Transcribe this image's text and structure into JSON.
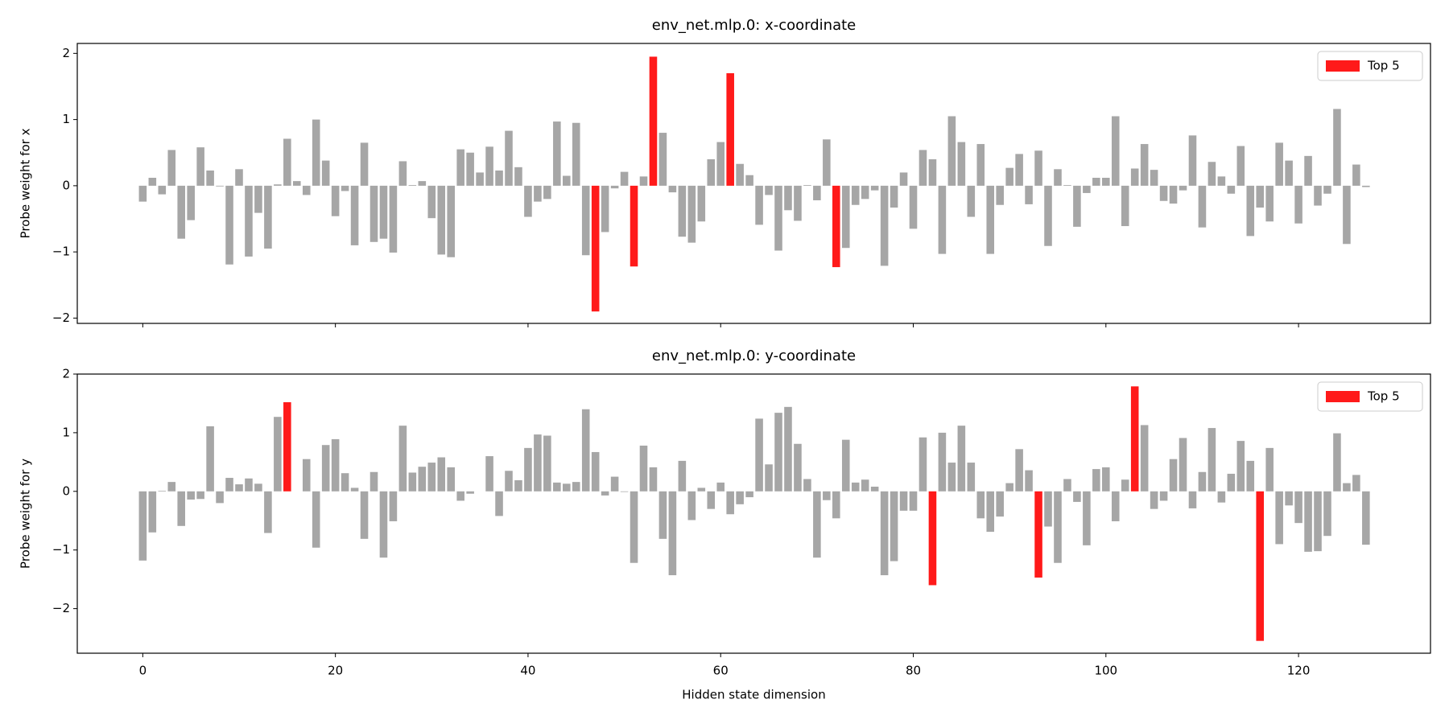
{
  "chart_data": [
    {
      "type": "bar",
      "title": "env_net.mlp.0: x-coordinate",
      "ylabel": "Probe weight for x",
      "x": [
        0,
        1,
        2,
        3,
        4,
        5,
        6,
        7,
        8,
        9,
        10,
        11,
        12,
        13,
        14,
        15,
        16,
        17,
        18,
        19,
        20,
        21,
        22,
        23,
        24,
        25,
        26,
        27,
        28,
        29,
        30,
        31,
        32,
        33,
        34,
        35,
        36,
        37,
        38,
        39,
        40,
        41,
        42,
        43,
        44,
        45,
        46,
        47,
        48,
        49,
        50,
        51,
        52,
        53,
        54,
        55,
        56,
        57,
        58,
        59,
        60,
        61,
        62,
        63,
        64,
        65,
        66,
        67,
        68,
        69,
        70,
        71,
        72,
        73,
        74,
        75,
        76,
        77,
        78,
        79,
        80,
        81,
        82,
        83,
        84,
        85,
        86,
        87,
        88,
        89,
        90,
        91,
        92,
        93,
        94,
        95,
        96,
        97,
        98,
        99,
        100,
        101,
        102,
        103,
        104,
        105,
        106,
        107,
        108,
        109,
        110,
        111,
        112,
        113,
        114,
        115,
        116,
        117,
        118,
        119,
        120,
        121,
        122,
        123,
        124,
        125,
        126,
        127
      ],
      "values": [
        -0.24,
        0.12,
        -0.13,
        0.54,
        -0.8,
        -0.52,
        0.58,
        0.23,
        -0.01,
        -1.19,
        0.25,
        -1.07,
        -0.41,
        -0.95,
        0.02,
        0.71,
        0.07,
        -0.14,
        1.0,
        0.38,
        -0.46,
        -0.08,
        -0.9,
        0.65,
        -0.85,
        -0.8,
        -1.01,
        0.37,
        0.01,
        0.07,
        -0.49,
        -1.04,
        -1.08,
        0.55,
        0.5,
        0.2,
        0.59,
        0.23,
        0.83,
        0.28,
        -0.47,
        -0.24,
        -0.2,
        0.97,
        0.15,
        0.95,
        -1.05,
        -1.9,
        -0.7,
        -0.04,
        0.21,
        -1.22,
        0.14,
        1.95,
        0.8,
        -0.1,
        -0.77,
        -0.86,
        -0.54,
        0.4,
        0.66,
        1.7,
        0.33,
        0.16,
        -0.59,
        -0.14,
        -0.98,
        -0.37,
        -0.53,
        0.01,
        -0.22,
        0.7,
        -1.23,
        -0.94,
        -0.29,
        -0.2,
        -0.07,
        -1.21,
        -0.33,
        0.2,
        -0.65,
        0.54,
        0.4,
        -1.03,
        1.05,
        0.66,
        -0.47,
        0.63,
        -1.03,
        -0.29,
        0.27,
        0.48,
        -0.28,
        0.53,
        -0.91,
        0.25,
        0.01,
        -0.62,
        -0.11,
        0.12,
        0.12,
        1.05,
        -0.61,
        0.26,
        0.63,
        0.24,
        -0.23,
        -0.27,
        -0.07,
        0.76,
        -0.63,
        0.36,
        0.14,
        -0.12,
        0.6,
        -0.76,
        -0.33,
        -0.54,
        0.65,
        0.38,
        -0.57,
        0.45,
        -0.3,
        -0.12,
        1.16,
        -0.88,
        0.32,
        -0.02
      ],
      "colors": [
        "#a6a6a6",
        "#a6a6a6",
        "#a6a6a6",
        "#a6a6a6",
        "#a6a6a6",
        "#a6a6a6",
        "#a6a6a6",
        "#a6a6a6",
        "#a6a6a6",
        "#a6a6a6",
        "#a6a6a6",
        "#a6a6a6",
        "#a6a6a6",
        "#a6a6a6",
        "#a6a6a6",
        "#a6a6a6",
        "#a6a6a6",
        "#a6a6a6",
        "#a6a6a6",
        "#a6a6a6",
        "#a6a6a6",
        "#a6a6a6",
        "#a6a6a6",
        "#a6a6a6",
        "#a6a6a6",
        "#a6a6a6",
        "#a6a6a6",
        "#a6a6a6",
        "#a6a6a6",
        "#a6a6a6",
        "#a6a6a6",
        "#a6a6a6",
        "#a6a6a6",
        "#a6a6a6",
        "#a6a6a6",
        "#a6a6a6",
        "#a6a6a6",
        "#a6a6a6",
        "#a6a6a6",
        "#a6a6a6",
        "#a6a6a6",
        "#a6a6a6",
        "#a6a6a6",
        "#a6a6a6",
        "#a6a6a6",
        "#a6a6a6",
        "#a6a6a6",
        "#ff1a1a",
        "#a6a6a6",
        "#a6a6a6",
        "#a6a6a6",
        "#ff1a1a",
        "#a6a6a6",
        "#ff1a1a",
        "#a6a6a6",
        "#a6a6a6",
        "#a6a6a6",
        "#a6a6a6",
        "#a6a6a6",
        "#a6a6a6",
        "#a6a6a6",
        "#ff1a1a",
        "#a6a6a6",
        "#a6a6a6",
        "#a6a6a6",
        "#a6a6a6",
        "#a6a6a6",
        "#a6a6a6",
        "#a6a6a6",
        "#a6a6a6",
        "#a6a6a6",
        "#a6a6a6",
        "#ff1a1a",
        "#a6a6a6",
        "#a6a6a6",
        "#a6a6a6",
        "#a6a6a6",
        "#a6a6a6",
        "#a6a6a6",
        "#a6a6a6",
        "#a6a6a6",
        "#a6a6a6",
        "#a6a6a6",
        "#a6a6a6",
        "#a6a6a6",
        "#a6a6a6",
        "#a6a6a6",
        "#a6a6a6",
        "#a6a6a6",
        "#a6a6a6",
        "#a6a6a6",
        "#a6a6a6",
        "#a6a6a6",
        "#a6a6a6",
        "#a6a6a6",
        "#a6a6a6",
        "#a6a6a6",
        "#a6a6a6",
        "#a6a6a6",
        "#a6a6a6",
        "#a6a6a6",
        "#a6a6a6",
        "#a6a6a6",
        "#a6a6a6",
        "#a6a6a6",
        "#a6a6a6",
        "#a6a6a6",
        "#a6a6a6",
        "#a6a6a6",
        "#a6a6a6",
        "#a6a6a6",
        "#a6a6a6",
        "#a6a6a6",
        "#a6a6a6",
        "#a6a6a6",
        "#a6a6a6",
        "#a6a6a6",
        "#a6a6a6",
        "#a6a6a6",
        "#a6a6a6",
        "#a6a6a6",
        "#a6a6a6",
        "#a6a6a6",
        "#a6a6a6",
        "#a6a6a6",
        "#a6a6a6",
        "#a6a6a6",
        "#a6a6a6"
      ],
      "legend": {
        "label": "Top 5",
        "color": "#ff1a1a",
        "loc": "upper right"
      },
      "xlim": [
        -6.8,
        133.7
      ],
      "xticks": [
        0,
        20,
        40,
        60,
        80,
        100,
        120
      ],
      "show_xtick_labels": false,
      "ylim": [
        -2.08,
        2.15
      ],
      "yticks": [
        {
          "value": -2,
          "label": "−2"
        },
        {
          "value": -1,
          "label": "−1"
        },
        0,
        1,
        2
      ]
    },
    {
      "type": "bar",
      "title": "env_net.mlp.0: y-coordinate",
      "ylabel": "Probe weight for y",
      "xlabel": "Hidden state dimension",
      "x": [
        0,
        1,
        2,
        3,
        4,
        5,
        6,
        7,
        8,
        9,
        10,
        11,
        12,
        13,
        14,
        15,
        16,
        17,
        18,
        19,
        20,
        21,
        22,
        23,
        24,
        25,
        26,
        27,
        28,
        29,
        30,
        31,
        32,
        33,
        34,
        35,
        36,
        37,
        38,
        39,
        40,
        41,
        42,
        43,
        44,
        45,
        46,
        47,
        48,
        49,
        50,
        51,
        52,
        53,
        54,
        55,
        56,
        57,
        58,
        59,
        60,
        61,
        62,
        63,
        64,
        65,
        66,
        67,
        68,
        69,
        70,
        71,
        72,
        73,
        74,
        75,
        76,
        77,
        78,
        79,
        80,
        81,
        82,
        83,
        84,
        85,
        86,
        87,
        88,
        89,
        90,
        91,
        92,
        93,
        94,
        95,
        96,
        97,
        98,
        99,
        100,
        101,
        102,
        103,
        104,
        105,
        106,
        107,
        108,
        109,
        110,
        111,
        112,
        113,
        114,
        115,
        116,
        117,
        118,
        119,
        120,
        121,
        122,
        123,
        124,
        125,
        126,
        127
      ],
      "values": [
        -1.18,
        -0.7,
        0.01,
        0.16,
        -0.59,
        -0.14,
        -0.13,
        1.11,
        -0.2,
        0.23,
        0.12,
        0.22,
        0.13,
        -0.71,
        1.27,
        1.52,
        0.0,
        0.55,
        -0.96,
        0.79,
        0.89,
        0.31,
        0.06,
        -0.81,
        0.33,
        -1.13,
        -0.51,
        1.12,
        0.32,
        0.42,
        0.49,
        0.58,
        0.41,
        -0.16,
        -0.04,
        0.0,
        0.6,
        -0.42,
        0.35,
        0.19,
        0.74,
        0.97,
        0.95,
        0.15,
        0.13,
        0.16,
        1.4,
        0.67,
        -0.07,
        0.25,
        -0.01,
        -1.22,
        0.78,
        0.41,
        -0.81,
        -1.43,
        0.52,
        -0.49,
        0.06,
        -0.3,
        0.15,
        -0.39,
        -0.22,
        -0.1,
        1.24,
        0.46,
        1.34,
        1.44,
        0.81,
        0.21,
        -1.13,
        -0.15,
        -0.46,
        0.88,
        0.15,
        0.2,
        0.08,
        -1.43,
        -1.19,
        -0.33,
        -0.33,
        0.92,
        -1.6,
        1.0,
        0.49,
        1.12,
        0.49,
        -0.46,
        -0.69,
        -0.43,
        0.14,
        0.72,
        0.36,
        -1.47,
        -0.6,
        -1.22,
        0.21,
        -0.18,
        -0.92,
        0.38,
        0.41,
        -0.51,
        0.2,
        1.79,
        1.13,
        -0.3,
        -0.16,
        0.55,
        0.91,
        -0.29,
        0.33,
        1.08,
        -0.19,
        0.3,
        0.86,
        0.52,
        -2.55,
        0.74,
        -0.9,
        -0.24,
        -0.54,
        -1.03,
        -1.02,
        -0.76,
        0.99,
        0.14,
        0.28,
        -0.91
      ],
      "colors": [
        "#a6a6a6",
        "#a6a6a6",
        "#a6a6a6",
        "#a6a6a6",
        "#a6a6a6",
        "#a6a6a6",
        "#a6a6a6",
        "#a6a6a6",
        "#a6a6a6",
        "#a6a6a6",
        "#a6a6a6",
        "#a6a6a6",
        "#a6a6a6",
        "#a6a6a6",
        "#a6a6a6",
        "#ff1a1a",
        "#a6a6a6",
        "#a6a6a6",
        "#a6a6a6",
        "#a6a6a6",
        "#a6a6a6",
        "#a6a6a6",
        "#a6a6a6",
        "#a6a6a6",
        "#a6a6a6",
        "#a6a6a6",
        "#a6a6a6",
        "#a6a6a6",
        "#a6a6a6",
        "#a6a6a6",
        "#a6a6a6",
        "#a6a6a6",
        "#a6a6a6",
        "#a6a6a6",
        "#a6a6a6",
        "#a6a6a6",
        "#a6a6a6",
        "#a6a6a6",
        "#a6a6a6",
        "#a6a6a6",
        "#a6a6a6",
        "#a6a6a6",
        "#a6a6a6",
        "#a6a6a6",
        "#a6a6a6",
        "#a6a6a6",
        "#a6a6a6",
        "#a6a6a6",
        "#a6a6a6",
        "#a6a6a6",
        "#a6a6a6",
        "#a6a6a6",
        "#a6a6a6",
        "#a6a6a6",
        "#a6a6a6",
        "#a6a6a6",
        "#a6a6a6",
        "#a6a6a6",
        "#a6a6a6",
        "#a6a6a6",
        "#a6a6a6",
        "#a6a6a6",
        "#a6a6a6",
        "#a6a6a6",
        "#a6a6a6",
        "#a6a6a6",
        "#a6a6a6",
        "#a6a6a6",
        "#a6a6a6",
        "#a6a6a6",
        "#a6a6a6",
        "#a6a6a6",
        "#a6a6a6",
        "#a6a6a6",
        "#a6a6a6",
        "#a6a6a6",
        "#a6a6a6",
        "#a6a6a6",
        "#a6a6a6",
        "#a6a6a6",
        "#a6a6a6",
        "#a6a6a6",
        "#ff1a1a",
        "#a6a6a6",
        "#a6a6a6",
        "#a6a6a6",
        "#a6a6a6",
        "#a6a6a6",
        "#a6a6a6",
        "#a6a6a6",
        "#a6a6a6",
        "#a6a6a6",
        "#a6a6a6",
        "#ff1a1a",
        "#a6a6a6",
        "#a6a6a6",
        "#a6a6a6",
        "#a6a6a6",
        "#a6a6a6",
        "#a6a6a6",
        "#a6a6a6",
        "#a6a6a6",
        "#a6a6a6",
        "#ff1a1a",
        "#a6a6a6",
        "#a6a6a6",
        "#a6a6a6",
        "#a6a6a6",
        "#a6a6a6",
        "#a6a6a6",
        "#a6a6a6",
        "#a6a6a6",
        "#a6a6a6",
        "#a6a6a6",
        "#a6a6a6",
        "#a6a6a6",
        "#ff1a1a",
        "#a6a6a6",
        "#a6a6a6",
        "#a6a6a6",
        "#a6a6a6",
        "#a6a6a6",
        "#a6a6a6",
        "#a6a6a6",
        "#a6a6a6",
        "#a6a6a6",
        "#a6a6a6",
        "#a6a6a6"
      ],
      "legend": {
        "label": "Top 5",
        "color": "#ff1a1a",
        "loc": "upper right"
      },
      "xlim": [
        -6.8,
        133.7
      ],
      "xticks": [
        0,
        20,
        40,
        60,
        80,
        100,
        120
      ],
      "show_xtick_labels": true,
      "ylim": [
        -2.76,
        2.0
      ],
      "yticks": [
        {
          "value": -2,
          "label": "−2"
        },
        {
          "value": -1,
          "label": "−1"
        },
        0,
        1,
        2
      ]
    }
  ]
}
